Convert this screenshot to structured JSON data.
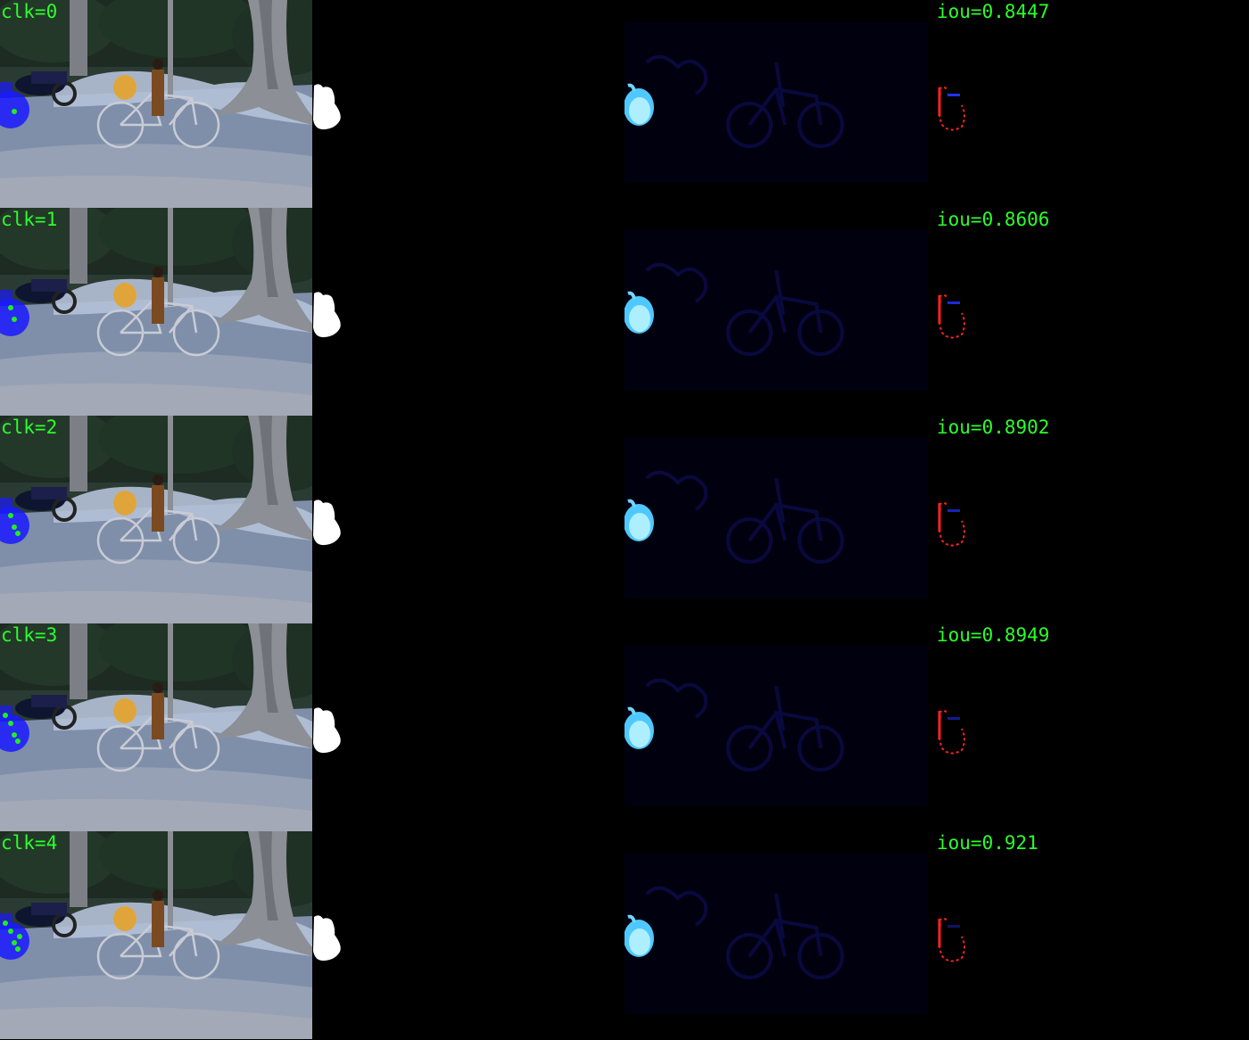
{
  "colors": {
    "label_green": "#2bff2b",
    "click_blue": "#1a1aff",
    "click_dot_green": "#22ee22",
    "heat_cyan": "#7fe7ff",
    "error_red": "#ff2222",
    "error_blue": "#2233ff"
  },
  "rows": [
    {
      "clk_label": "clk=0",
      "iou_label": "iou=0.8447",
      "clicks": 1
    },
    {
      "clk_label": "clk=1",
      "iou_label": "iou=0.8606",
      "clicks": 2
    },
    {
      "clk_label": "clk=2",
      "iou_label": "iou=0.8902",
      "clicks": 3
    },
    {
      "clk_label": "clk=3",
      "iou_label": "iou=0.8949",
      "clicks": 4
    },
    {
      "clk_label": "clk=4",
      "iou_label": "iou=0.921",
      "clicks": 5
    }
  ]
}
